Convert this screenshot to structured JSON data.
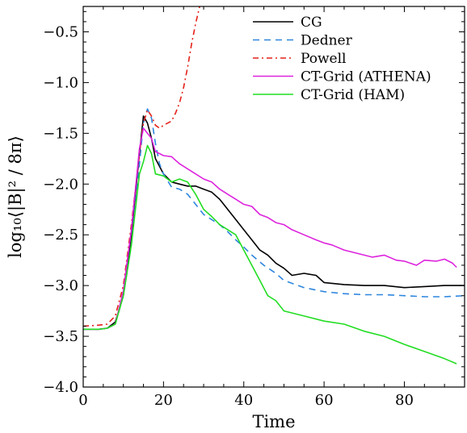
{
  "chart_data": {
    "type": "line",
    "title": "",
    "xlabel": "Time",
    "ylabel": "log₁₀⟨|B|² / 8π⟩",
    "xlim": [
      0,
      95
    ],
    "ylim": [
      -4.0,
      -0.25
    ],
    "x_ticks": [
      0,
      20,
      40,
      60,
      80
    ],
    "x_tick_labels": [
      "0",
      "20",
      "40",
      "60",
      "80"
    ],
    "y_ticks": [
      -4.0,
      -3.5,
      -3.0,
      -2.5,
      -2.0,
      -1.5,
      -1.0,
      -0.5
    ],
    "y_tick_labels": [
      "−4.0",
      "−3.5",
      "−3.0",
      "−2.5",
      "−2.0",
      "−1.5",
      "−1.0",
      "−0.5"
    ],
    "grid": false,
    "legend_position": "top-right",
    "series": [
      {
        "name": "CG",
        "color": "#000000",
        "dash": "solid",
        "points": [
          [
            0,
            -3.43
          ],
          [
            4,
            -3.43
          ],
          [
            6,
            -3.42
          ],
          [
            8,
            -3.36
          ],
          [
            10,
            -3.1
          ],
          [
            12,
            -2.5
          ],
          [
            14,
            -1.7
          ],
          [
            15,
            -1.33
          ],
          [
            16,
            -1.4
          ],
          [
            17,
            -1.55
          ],
          [
            18,
            -1.75
          ],
          [
            20,
            -1.9
          ],
          [
            22,
            -1.98
          ],
          [
            24,
            -2.0
          ],
          [
            26,
            -2.02
          ],
          [
            28,
            -2.02
          ],
          [
            30,
            -2.05
          ],
          [
            32,
            -2.08
          ],
          [
            34,
            -2.15
          ],
          [
            36,
            -2.25
          ],
          [
            38,
            -2.35
          ],
          [
            40,
            -2.45
          ],
          [
            42,
            -2.55
          ],
          [
            44,
            -2.65
          ],
          [
            46,
            -2.7
          ],
          [
            48,
            -2.78
          ],
          [
            50,
            -2.83
          ],
          [
            52,
            -2.9
          ],
          [
            55,
            -2.88
          ],
          [
            58,
            -2.9
          ],
          [
            60,
            -2.97
          ],
          [
            65,
            -2.99
          ],
          [
            70,
            -3.0
          ],
          [
            75,
            -3.0
          ],
          [
            80,
            -3.02
          ],
          [
            85,
            -3.01
          ],
          [
            90,
            -3.0
          ],
          [
            95,
            -3.0
          ]
        ]
      },
      {
        "name": "Dedner",
        "color": "#2e86de",
        "dash": "8,6",
        "points": [
          [
            0,
            -3.43
          ],
          [
            4,
            -3.43
          ],
          [
            6,
            -3.42
          ],
          [
            8,
            -3.38
          ],
          [
            10,
            -3.1
          ],
          [
            12,
            -2.6
          ],
          [
            14,
            -1.8
          ],
          [
            15,
            -1.4
          ],
          [
            16,
            -1.26
          ],
          [
            17,
            -1.35
          ],
          [
            18,
            -1.6
          ],
          [
            19,
            -1.8
          ],
          [
            20,
            -1.9
          ],
          [
            22,
            -2.03
          ],
          [
            24,
            -2.05
          ],
          [
            26,
            -2.1
          ],
          [
            28,
            -2.2
          ],
          [
            30,
            -2.3
          ],
          [
            32,
            -2.35
          ],
          [
            34,
            -2.4
          ],
          [
            36,
            -2.47
          ],
          [
            38,
            -2.55
          ],
          [
            40,
            -2.62
          ],
          [
            42,
            -2.7
          ],
          [
            45,
            -2.8
          ],
          [
            48,
            -2.88
          ],
          [
            50,
            -2.95
          ],
          [
            55,
            -3.02
          ],
          [
            60,
            -3.06
          ],
          [
            65,
            -3.08
          ],
          [
            70,
            -3.09
          ],
          [
            75,
            -3.09
          ],
          [
            80,
            -3.1
          ],
          [
            85,
            -3.11
          ],
          [
            90,
            -3.11
          ],
          [
            95,
            -3.1
          ]
        ]
      },
      {
        "name": "Powell",
        "color": "#e32119",
        "dash": "7,4,2,4",
        "points": [
          [
            0,
            -3.4
          ],
          [
            4,
            -3.39
          ],
          [
            6,
            -3.38
          ],
          [
            8,
            -3.3
          ],
          [
            10,
            -3.0
          ],
          [
            12,
            -2.4
          ],
          [
            14,
            -1.7
          ],
          [
            15,
            -1.4
          ],
          [
            16,
            -1.27
          ],
          [
            17,
            -1.33
          ],
          [
            18,
            -1.42
          ],
          [
            19,
            -1.45
          ],
          [
            20,
            -1.42
          ],
          [
            22,
            -1.38
          ],
          [
            23,
            -1.3
          ],
          [
            24,
            -1.2
          ],
          [
            25,
            -1.05
          ],
          [
            26,
            -0.85
          ],
          [
            27,
            -0.62
          ],
          [
            28,
            -0.42
          ],
          [
            29,
            -0.25
          ]
        ]
      },
      {
        "name": "CT-Grid (ATHENA)",
        "color": "#dd24dd",
        "dash": "solid",
        "points": [
          [
            0,
            -3.43
          ],
          [
            4,
            -3.43
          ],
          [
            6,
            -3.42
          ],
          [
            8,
            -3.38
          ],
          [
            10,
            -3.05
          ],
          [
            12,
            -2.45
          ],
          [
            14,
            -1.65
          ],
          [
            15,
            -1.45
          ],
          [
            16,
            -1.5
          ],
          [
            17,
            -1.55
          ],
          [
            18,
            -1.68
          ],
          [
            20,
            -1.72
          ],
          [
            22,
            -1.73
          ],
          [
            24,
            -1.8
          ],
          [
            26,
            -1.85
          ],
          [
            28,
            -1.9
          ],
          [
            30,
            -1.95
          ],
          [
            32,
            -1.98
          ],
          [
            34,
            -2.05
          ],
          [
            36,
            -2.1
          ],
          [
            38,
            -2.15
          ],
          [
            40,
            -2.2
          ],
          [
            42,
            -2.22
          ],
          [
            44,
            -2.3
          ],
          [
            46,
            -2.33
          ],
          [
            48,
            -2.38
          ],
          [
            50,
            -2.4
          ],
          [
            52,
            -2.45
          ],
          [
            55,
            -2.5
          ],
          [
            58,
            -2.55
          ],
          [
            60,
            -2.58
          ],
          [
            62,
            -2.6
          ],
          [
            65,
            -2.65
          ],
          [
            68,
            -2.68
          ],
          [
            70,
            -2.7
          ],
          [
            72,
            -2.72
          ],
          [
            75,
            -2.7
          ],
          [
            78,
            -2.75
          ],
          [
            80,
            -2.76
          ],
          [
            83,
            -2.8
          ],
          [
            85,
            -2.75
          ],
          [
            88,
            -2.76
          ],
          [
            90,
            -2.74
          ],
          [
            92,
            -2.78
          ],
          [
            93,
            -2.82
          ]
        ]
      },
      {
        "name": "CT-Grid (HAM)",
        "color": "#22dd22",
        "dash": "solid",
        "points": [
          [
            0,
            -3.43
          ],
          [
            4,
            -3.43
          ],
          [
            6,
            -3.42
          ],
          [
            8,
            -3.38
          ],
          [
            10,
            -3.1
          ],
          [
            12,
            -2.6
          ],
          [
            14,
            -1.9
          ],
          [
            15,
            -1.78
          ],
          [
            16,
            -1.62
          ],
          [
            17,
            -1.7
          ],
          [
            18,
            -1.9
          ],
          [
            20,
            -1.92
          ],
          [
            22,
            -1.98
          ],
          [
            24,
            -1.95
          ],
          [
            26,
            -1.98
          ],
          [
            28,
            -2.1
          ],
          [
            30,
            -2.25
          ],
          [
            32,
            -2.32
          ],
          [
            34,
            -2.4
          ],
          [
            36,
            -2.45
          ],
          [
            38,
            -2.5
          ],
          [
            40,
            -2.65
          ],
          [
            42,
            -2.8
          ],
          [
            44,
            -2.95
          ],
          [
            46,
            -3.1
          ],
          [
            48,
            -3.15
          ],
          [
            50,
            -3.25
          ],
          [
            55,
            -3.3
          ],
          [
            60,
            -3.35
          ],
          [
            65,
            -3.38
          ],
          [
            70,
            -3.45
          ],
          [
            75,
            -3.5
          ],
          [
            80,
            -3.58
          ],
          [
            85,
            -3.65
          ],
          [
            90,
            -3.72
          ],
          [
            93,
            -3.77
          ]
        ]
      }
    ]
  }
}
